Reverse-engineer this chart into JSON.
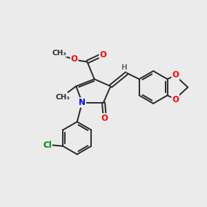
{
  "bg_color": "#ebebeb",
  "bond_color": "#2d2d2d",
  "bond_width": 1.5,
  "atom_colors": {
    "O": "#ff0000",
    "N": "#0000ff",
    "Cl": "#008000",
    "C": "#2d2d2d",
    "H": "#607080"
  },
  "font_size": 8.5,
  "small_font_size": 7.5
}
